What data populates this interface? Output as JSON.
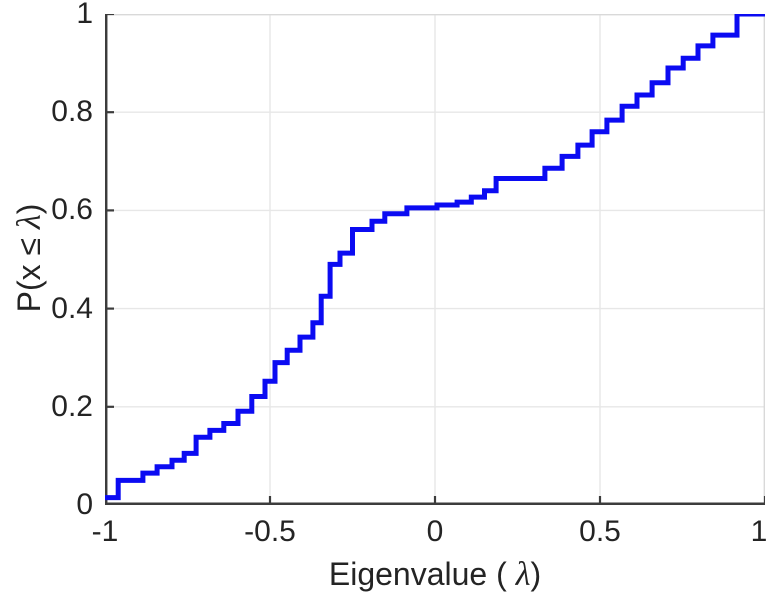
{
  "labels": {
    "xlabel_prefix": "Eigenvalue (",
    "xlabel_symbol": "λ",
    "xlabel_suffix": ")",
    "ylabel_prefix": "P(x ≤ ",
    "ylabel_symbol": "λ",
    "ylabel_suffix": ")"
  },
  "style": {
    "background": "#ffffff",
    "line_color": "#0b0bf2",
    "axis_color": "#3c3c3c",
    "box_light_color": "#d9d9d9",
    "grid_color": "#e7e7e7",
    "text_color": "#242424"
  },
  "chart_data": {
    "type": "line",
    "subtype": "empirical-cdf-staircase",
    "title": "",
    "xlabel": "Eigenvalue ( λ)",
    "ylabel": "P(x ≤ λ)",
    "xlim": [
      -1,
      1
    ],
    "ylim": [
      0,
      1
    ],
    "x_ticks": [
      -1,
      -0.5,
      0,
      0.5,
      1
    ],
    "x_tick_labels": [
      "-1",
      "-0.5",
      "0",
      "0.5",
      "1"
    ],
    "y_ticks": [
      0,
      0.2,
      0.4,
      0.6,
      0.8,
      1
    ],
    "y_tick_labels": [
      "0",
      "0.2",
      "0.4",
      "0.6",
      "0.8",
      "1"
    ],
    "grid": true,
    "legend": false,
    "series": [
      {
        "name": "eigenvalue-ecdf",
        "color": "#0b0bf2",
        "line_width": 5,
        "points": [
          [
            -1.0,
            0.015
          ],
          [
            -0.96,
            0.05
          ],
          [
            -0.885,
            0.065
          ],
          [
            -0.842,
            0.078
          ],
          [
            -0.797,
            0.091
          ],
          [
            -0.76,
            0.105
          ],
          [
            -0.724,
            0.138
          ],
          [
            -0.682,
            0.152
          ],
          [
            -0.64,
            0.166
          ],
          [
            -0.597,
            0.191
          ],
          [
            -0.555,
            0.221
          ],
          [
            -0.515,
            0.252
          ],
          [
            -0.485,
            0.29
          ],
          [
            -0.448,
            0.315
          ],
          [
            -0.409,
            0.342
          ],
          [
            -0.37,
            0.371
          ],
          [
            -0.345,
            0.425
          ],
          [
            -0.318,
            0.49
          ],
          [
            -0.288,
            0.513
          ],
          [
            -0.25,
            0.561
          ],
          [
            -0.191,
            0.578
          ],
          [
            -0.152,
            0.593
          ],
          [
            -0.085,
            0.605
          ],
          [
            0.006,
            0.611
          ],
          [
            0.067,
            0.617
          ],
          [
            0.11,
            0.627
          ],
          [
            0.15,
            0.64
          ],
          [
            0.185,
            0.665
          ],
          [
            0.333,
            0.686
          ],
          [
            0.385,
            0.71
          ],
          [
            0.433,
            0.733
          ],
          [
            0.476,
            0.76
          ],
          [
            0.521,
            0.784
          ],
          [
            0.567,
            0.812
          ],
          [
            0.612,
            0.835
          ],
          [
            0.658,
            0.86
          ],
          [
            0.706,
            0.89
          ],
          [
            0.752,
            0.91
          ],
          [
            0.797,
            0.935
          ],
          [
            0.842,
            0.957
          ],
          [
            0.915,
            1.0
          ]
        ]
      }
    ]
  }
}
